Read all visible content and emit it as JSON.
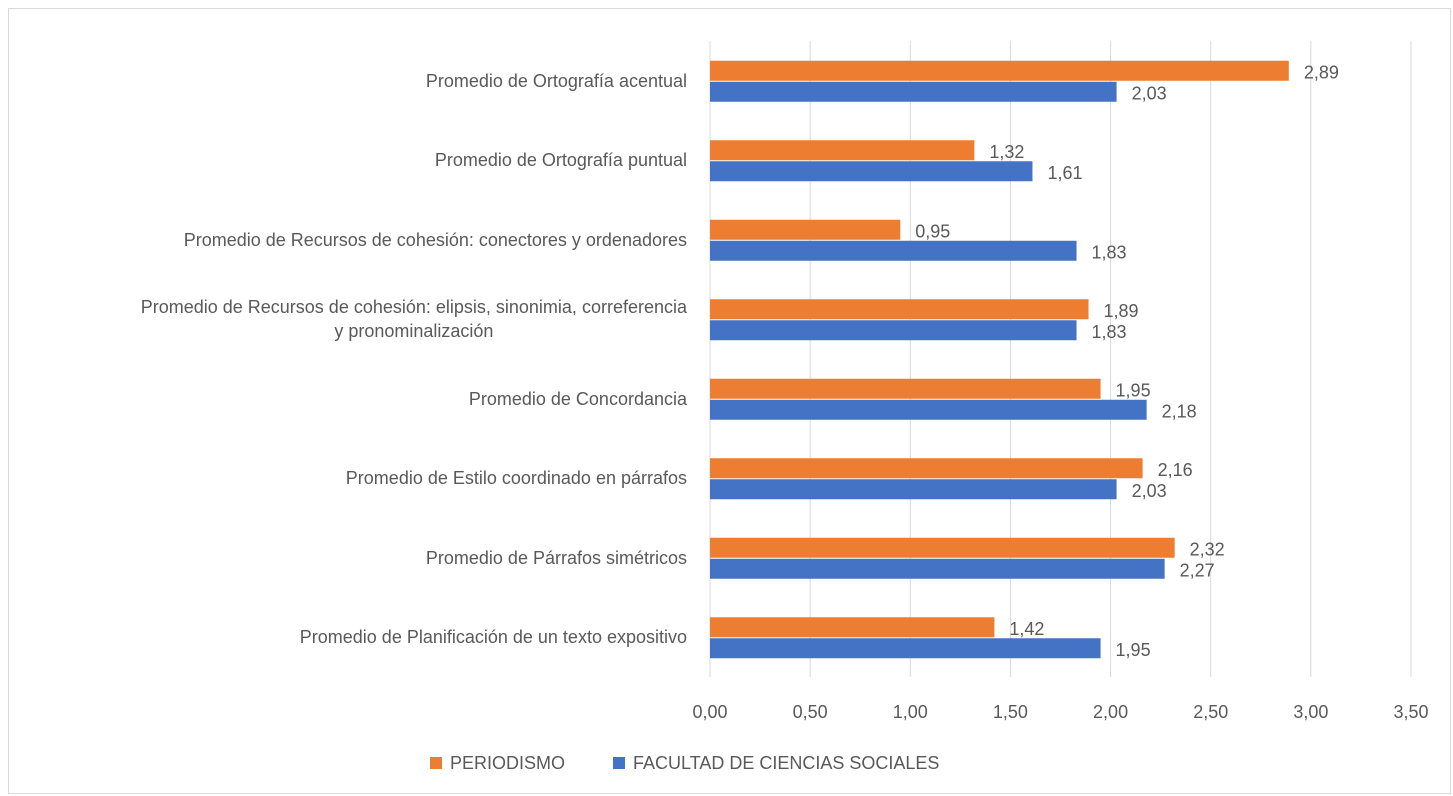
{
  "chart_data": {
    "type": "bar",
    "orientation": "horizontal",
    "categories": [
      "Promedio de Ortografía acentual",
      "Promedio de Ortografía puntual",
      "Promedio de Recursos de cohesión: conectores y ordenadores",
      "Promedio de Recursos de cohesión: elipsis, sinonimia, correferencia\ny pronominalización",
      "Promedio de Concordancia",
      "Promedio de Estilo coordinado en párrafos",
      "Promedio de Párrafos simétricos",
      "Promedio de Planificación de un texto expositivo"
    ],
    "series": [
      {
        "name": "PERIODISMO",
        "color": "#ed7d31",
        "values": [
          2.89,
          1.32,
          0.95,
          1.89,
          1.95,
          2.16,
          2.32,
          1.42
        ],
        "value_labels": [
          "2,89",
          "1,32",
          "0,95",
          "1,89",
          "1,95",
          "2,16",
          "2,32",
          "1,42"
        ]
      },
      {
        "name": "FACULTAD DE CIENCIAS SOCIALES",
        "color": "#4472c4",
        "values": [
          2.03,
          1.61,
          1.83,
          1.83,
          2.18,
          2.03,
          2.27,
          1.95
        ],
        "value_labels": [
          "2,03",
          "1,61",
          "1,83",
          "1,83",
          "2,18",
          "2,03",
          "2,27",
          "1,95"
        ]
      }
    ],
    "xlim": [
      0,
      3.5
    ],
    "xticks": [
      {
        "value": 0,
        "label": "0,00"
      },
      {
        "value": 0.5,
        "label": "0,50"
      },
      {
        "value": 1,
        "label": "1,00"
      },
      {
        "value": 1.5,
        "label": "1,50"
      },
      {
        "value": 2,
        "label": "2,00"
      },
      {
        "value": 2.5,
        "label": "2,50"
      },
      {
        "value": 3,
        "label": "3,00"
      },
      {
        "value": 3.5,
        "label": "3,50"
      }
    ],
    "grid": true,
    "legend": "bottom"
  }
}
